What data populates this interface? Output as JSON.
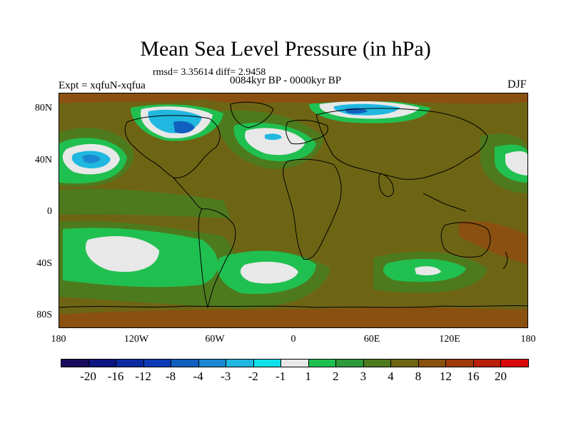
{
  "title": "Mean Sea Level Pressure (in hPa)",
  "stats": "rmsd= 3.35614  diff= 2.9458",
  "experiment": "Expt = xqfuN-xqfua",
  "period": "0084kyr BP - 0000kyr BP",
  "season": "DJF",
  "lat_labels": [
    "80N",
    "40N",
    "0",
    "40S",
    "80S"
  ],
  "lon_labels": [
    "180",
    "120W",
    "60W",
    "0",
    "60E",
    "120E",
    "180"
  ],
  "colorbar": {
    "labels": [
      "-20",
      "-16",
      "-12",
      "-8",
      "-4",
      "-3",
      "-2",
      "-1",
      "1",
      "2",
      "3",
      "4",
      "8",
      "12",
      "16",
      "20"
    ],
    "colors": [
      "#1a0a5e",
      "#0c1480",
      "#0a2ba0",
      "#0d3bb5",
      "#1160c0",
      "#1a88d0",
      "#20b8e0",
      "#10e0e8",
      "#e8e8e8",
      "#20c050",
      "#2c9a38",
      "#4e7a1e",
      "#6e6514",
      "#8a5010",
      "#a03a0c",
      "#b81e08",
      "#d80a0a"
    ]
  },
  "colors": {
    "background": "#6e6514",
    "land_outline": "#000000"
  }
}
